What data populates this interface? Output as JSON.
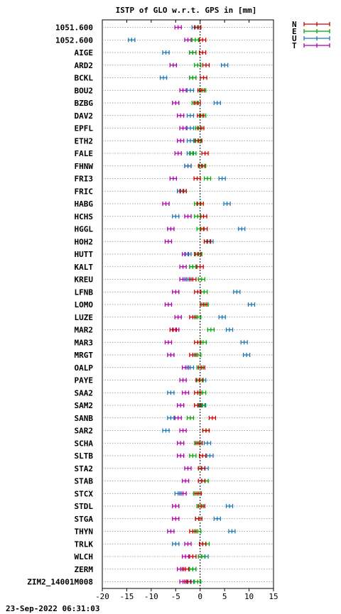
{
  "chart_data": {
    "type": "scatter",
    "title": "ISTP of GLO w.r.t. GPS in [mm]",
    "xlim": [
      -20,
      15
    ],
    "xticks": [
      -20,
      -15,
      -10,
      -5,
      0,
      5,
      10,
      15
    ],
    "grid": true,
    "legend_position": "top-right",
    "categories": [
      "1051.600",
      "1052.600",
      "AIGE",
      "ARD2",
      "BCKL",
      "BOU2",
      "BZBG",
      "DAV2",
      "EPFL",
      "ETH2",
      "FALE",
      "FHNW",
      "FRI3",
      "FRIC",
      "HABG",
      "HCHS",
      "HGGL",
      "HOH2",
      "HUTT",
      "KALT",
      "KREU",
      "LFNB",
      "LOMO",
      "LUZE",
      "MAR2",
      "MAR3",
      "MRGT",
      "OALP",
      "PAYE",
      "SAA2",
      "SAM2",
      "SANB",
      "SAR2",
      "SCHA",
      "SLTB",
      "STA2",
      "STAB",
      "STCX",
      "STDL",
      "STGA",
      "THYN",
      "TRLK",
      "WLCH",
      "ZERM",
      "ZIM2_14001M008"
    ],
    "series": [
      {
        "name": "N",
        "color": "#cc0000",
        "values": [
          -0.5,
          0.5,
          0.5,
          1.2,
          0.7,
          0.2,
          -0.6,
          0.1,
          0.1,
          -0.3,
          1.0,
          0.3,
          -0.6,
          -3.5,
          0.0,
          0.7,
          0.8,
          1.5,
          -0.5,
          0.0,
          -1.5,
          -0.5,
          0.7,
          -1.5,
          -5.5,
          -0.5,
          -1.5,
          0.3,
          -0.2,
          -0.5,
          -0.5,
          2.5,
          1.2,
          -0.2,
          0.5,
          0.3,
          0.3,
          -0.4,
          0.3,
          -0.3,
          -1.5,
          0.5,
          -1.5,
          -3.0,
          -2.5
        ]
      },
      {
        "name": "E",
        "color": "#00aa00",
        "values": [
          -0.5,
          -1.0,
          -1.5,
          -0.5,
          -1.5,
          0.5,
          -1.0,
          0.5,
          -0.3,
          -0.5,
          -1.5,
          0.5,
          1.5,
          -3.5,
          -0.5,
          -0.5,
          0.0,
          1.5,
          -0.3,
          -1.5,
          0.3,
          0.8,
          1.0,
          -0.5,
          2.2,
          0.6,
          -0.5,
          0.0,
          0.0,
          0.5,
          0.3,
          -2.0,
          1.2,
          -0.5,
          -1.5,
          0.3,
          1.0,
          -0.7,
          0.0,
          -0.3,
          -0.5,
          1.2,
          0.3,
          -1.5,
          -0.5
        ]
      },
      {
        "name": "U",
        "color": "#1f77b4",
        "values": [
          -1.0,
          -14.0,
          -7.0,
          5.0,
          -7.5,
          -2.0,
          3.5,
          -2.0,
          -2.0,
          -2.0,
          -2.0,
          -2.5,
          4.5,
          -4.0,
          5.5,
          -5.0,
          8.5,
          2.0,
          -2.5,
          -1.5,
          -2.5,
          7.5,
          10.5,
          4.5,
          6.0,
          9.0,
          9.5,
          -2.0,
          0.5,
          -6.0,
          0.5,
          -6.0,
          -7.0,
          1.5,
          2.0,
          1.0,
          1.0,
          -4.5,
          6.0,
          3.5,
          6.5,
          -5.0,
          1.0,
          -1.5,
          -2.0
        ]
      },
      {
        "name": "T",
        "color": "#b000b0",
        "values": [
          -4.5,
          -2.5,
          -1.5,
          -5.5,
          -1.5,
          -3.5,
          -5.0,
          -4.0,
          -3.5,
          -4.0,
          -4.5,
          -2.5,
          -5.5,
          -4.0,
          -7.0,
          -2.5,
          -6.0,
          -6.5,
          -3.0,
          -3.5,
          -3.5,
          -5.0,
          -6.5,
          -4.5,
          -5.0,
          -6.5,
          -6.0,
          -3.0,
          -3.5,
          -3.0,
          -4.0,
          -4.5,
          -3.5,
          -4.0,
          -4.0,
          -2.5,
          -3.0,
          -3.5,
          -5.0,
          -5.0,
          -6.0,
          -2.5,
          -3.0,
          -4.0,
          -3.5
        ]
      }
    ]
  },
  "legend": {
    "entries": [
      "N",
      "E",
      "U",
      "T"
    ]
  },
  "timestamp": "23-Sep-2022 06:31:03"
}
